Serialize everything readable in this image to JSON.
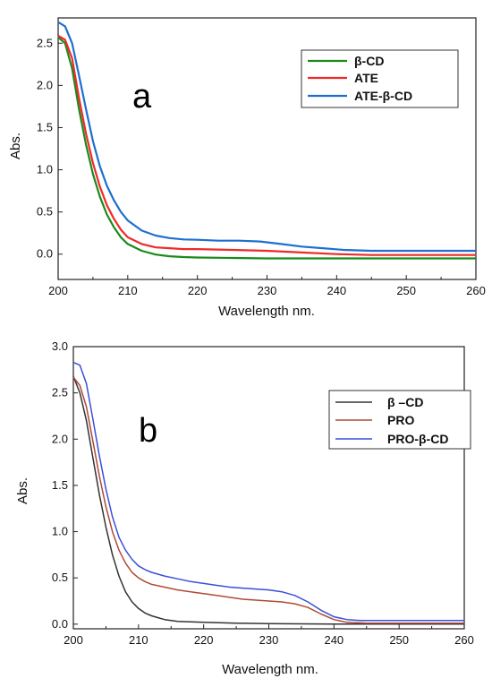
{
  "chart_data": [
    {
      "type": "line",
      "panel_label": "a",
      "xlabel": "Wavelength nm.",
      "ylabel": "Abs.",
      "xlim": [
        200,
        260
      ],
      "ylim": [
        -0.3,
        2.8
      ],
      "xticks": [
        "200",
        "210",
        "220",
        "230",
        "240",
        "250",
        "260"
      ],
      "yticks": [
        "0.0",
        "0.5",
        "1.0",
        "1.5",
        "2.0",
        "2.5"
      ],
      "legend_position": "top-right",
      "grid": false,
      "series": [
        {
          "name": "β-CD",
          "color": "#1a8a1a",
          "x": [
            200,
            201,
            202,
            203,
            204,
            205,
            206,
            207,
            208,
            209,
            210,
            212,
            214,
            216,
            218,
            220,
            225,
            230,
            235,
            240,
            245,
            250,
            255,
            260
          ],
          "y": [
            2.57,
            2.5,
            2.2,
            1.72,
            1.3,
            0.95,
            0.68,
            0.47,
            0.32,
            0.2,
            0.12,
            0.04,
            -0.005,
            -0.025,
            -0.035,
            -0.04,
            -0.045,
            -0.05,
            -0.05,
            -0.05,
            -0.05,
            -0.05,
            -0.05,
            -0.05
          ]
        },
        {
          "name": "ATE",
          "color": "#ee2a2a",
          "x": [
            200,
            201,
            202,
            203,
            204,
            205,
            206,
            207,
            208,
            209,
            210,
            212,
            214,
            216,
            218,
            220,
            225,
            230,
            235,
            240,
            245,
            250,
            255,
            260
          ],
          "y": [
            2.59,
            2.54,
            2.32,
            1.85,
            1.43,
            1.08,
            0.8,
            0.58,
            0.42,
            0.29,
            0.2,
            0.12,
            0.08,
            0.07,
            0.06,
            0.06,
            0.05,
            0.04,
            0.02,
            0.0,
            -0.01,
            -0.01,
            -0.01,
            -0.01
          ]
        },
        {
          "name": "ATE-β-CD",
          "color": "#1e6fd0",
          "x": [
            200,
            201,
            202,
            203,
            204,
            205,
            206,
            207,
            208,
            209,
            210,
            212,
            214,
            216,
            218,
            220,
            223,
            226,
            229,
            232,
            235,
            238,
            241,
            245,
            250,
            255,
            260
          ],
          "y": [
            2.75,
            2.7,
            2.5,
            2.12,
            1.72,
            1.34,
            1.04,
            0.81,
            0.64,
            0.5,
            0.4,
            0.28,
            0.22,
            0.19,
            0.175,
            0.17,
            0.16,
            0.16,
            0.15,
            0.12,
            0.09,
            0.07,
            0.05,
            0.04,
            0.04,
            0.04,
            0.04
          ]
        }
      ]
    },
    {
      "type": "line",
      "panel_label": "b",
      "xlabel": "Wavelength nm.",
      "ylabel": "Abs.",
      "xlim": [
        200,
        260
      ],
      "ylim": [
        -0.05,
        3.0
      ],
      "xticks": [
        "200",
        "210",
        "220",
        "230",
        "240",
        "250",
        "260"
      ],
      "yticks": [
        "0.0",
        "0.5",
        "1.0",
        "1.5",
        "2.0",
        "2.5",
        "3.0"
      ],
      "legend_position": "top-right",
      "grid": false,
      "series": [
        {
          "name": "β –CD",
          "color": "#333333",
          "x": [
            200,
            201,
            202,
            203,
            204,
            205,
            206,
            207,
            208,
            209,
            210,
            211,
            212,
            213,
            214,
            216,
            218,
            220,
            225,
            230,
            240,
            250,
            260
          ],
          "y": [
            2.68,
            2.5,
            2.2,
            1.8,
            1.4,
            1.05,
            0.75,
            0.52,
            0.35,
            0.24,
            0.17,
            0.12,
            0.09,
            0.07,
            0.05,
            0.03,
            0.025,
            0.02,
            0.01,
            0.005,
            0.0,
            0.0,
            0.0
          ]
        },
        {
          "name": "PRO",
          "color": "#b04a35",
          "x": [
            200,
            201,
            202,
            203,
            204,
            205,
            206,
            207,
            208,
            209,
            210,
            211,
            212,
            214,
            216,
            218,
            220,
            222,
            224,
            226,
            228,
            230,
            232,
            234,
            236,
            238,
            240,
            242,
            245,
            250,
            255,
            260
          ],
          "y": [
            2.67,
            2.58,
            2.35,
            1.98,
            1.6,
            1.27,
            1.0,
            0.8,
            0.66,
            0.56,
            0.5,
            0.46,
            0.43,
            0.4,
            0.37,
            0.35,
            0.33,
            0.31,
            0.29,
            0.27,
            0.26,
            0.25,
            0.24,
            0.22,
            0.18,
            0.11,
            0.05,
            0.02,
            0.01,
            0.01,
            0.01,
            0.01
          ]
        },
        {
          "name": "PRO-β-CD",
          "color": "#3a4fd8",
          "x": [
            200,
            201,
            202,
            203,
            204,
            205,
            206,
            207,
            208,
            209,
            210,
            211,
            212,
            214,
            216,
            218,
            220,
            222,
            224,
            226,
            228,
            230,
            232,
            234,
            236,
            238,
            240,
            242,
            244,
            246,
            250,
            255,
            260
          ],
          "y": [
            2.83,
            2.8,
            2.6,
            2.22,
            1.82,
            1.46,
            1.16,
            0.94,
            0.8,
            0.7,
            0.63,
            0.59,
            0.56,
            0.52,
            0.49,
            0.46,
            0.44,
            0.42,
            0.4,
            0.39,
            0.38,
            0.37,
            0.35,
            0.31,
            0.24,
            0.15,
            0.08,
            0.05,
            0.04,
            0.04,
            0.04,
            0.04,
            0.04
          ]
        }
      ]
    }
  ]
}
